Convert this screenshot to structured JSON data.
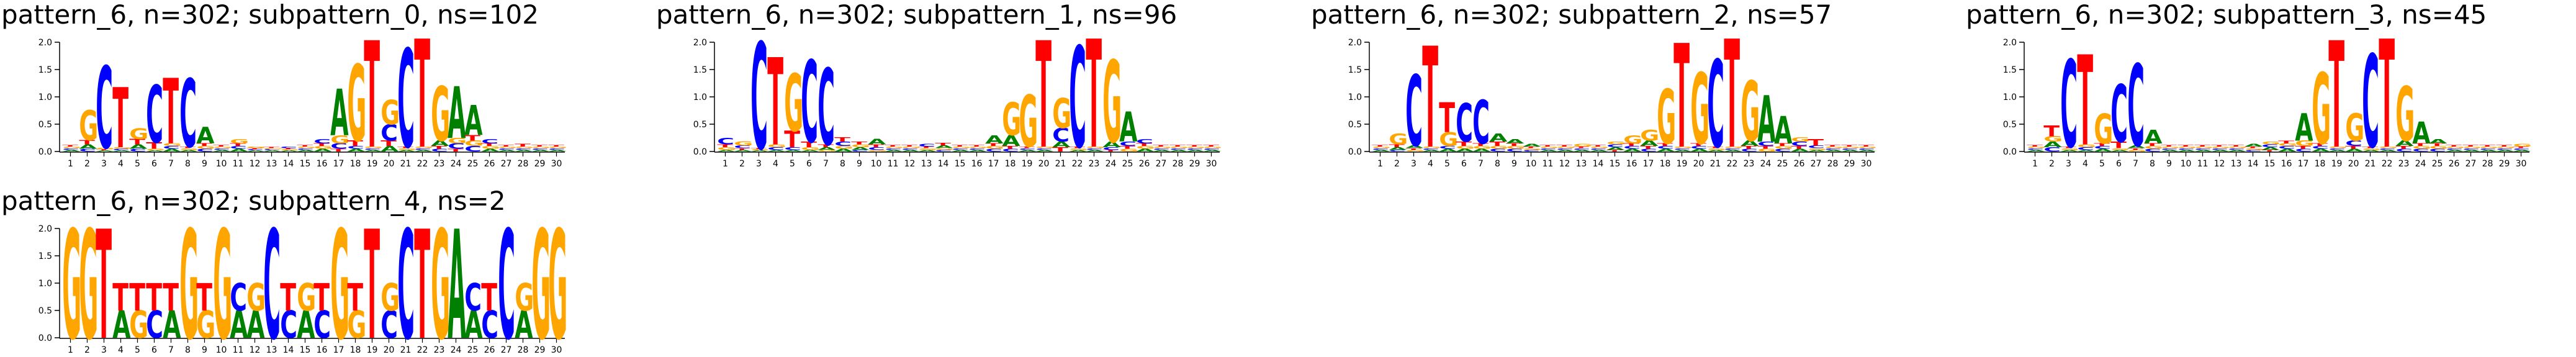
{
  "colors": {
    "A": "#008000",
    "C": "#0000ff",
    "G": "#ffa500",
    "T": "#ff0000"
  },
  "chart_data": [
    {
      "type": "sequence-logo",
      "title": "pattern_6, n=302; subpattern_0, ns=102",
      "ylim": [
        0,
        2.0
      ],
      "yticks": [
        "0.0",
        "0.5",
        "1.0",
        "1.5",
        "2.0"
      ],
      "positions": [
        "1",
        "2",
        "3",
        "4",
        "5",
        "6",
        "7",
        "8",
        "9",
        "10",
        "11",
        "12",
        "13",
        "14",
        "15",
        "16",
        "17",
        "18",
        "19",
        "20",
        "21",
        "22",
        "23",
        "24",
        "25",
        "26",
        "27",
        "28",
        "29",
        "30"
      ],
      "letters": [
        {
          "A": 0.03,
          "C": 0.03,
          "G": 0.03,
          "T": 0.03
        },
        {
          "A": 0.08,
          "C": 0.05,
          "G": 0.55,
          "T": 0.08
        },
        {
          "A": 0.02,
          "C": 1.5,
          "G": 0.03,
          "T": 0.02
        },
        {
          "A": 0.02,
          "C": 0.03,
          "G": 0.03,
          "T": 1.1
        },
        {
          "A": 0.08,
          "C": 0.05,
          "G": 0.2,
          "T": 0.1
        },
        {
          "A": 0.02,
          "C": 1.05,
          "G": 0.03,
          "T": 0.12
        },
        {
          "A": 0.05,
          "C": 0.05,
          "G": 0.05,
          "T": 1.2
        },
        {
          "A": 0.03,
          "C": 1.25,
          "G": 0.03,
          "T": 0.03
        },
        {
          "A": 0.3,
          "C": 0.05,
          "G": 0.05,
          "T": 0.05
        },
        {
          "A": 0.03,
          "C": 0.03,
          "G": 0.03,
          "T": 0.03
        },
        {
          "A": 0.05,
          "C": 0.05,
          "G": 0.08,
          "T": 0.05
        },
        {
          "A": 0.02,
          "C": 0.02,
          "G": 0.03,
          "T": 0.02
        },
        {
          "A": 0.02,
          "C": 0.02,
          "G": 0.02,
          "T": 0.02
        },
        {
          "A": 0.02,
          "C": 0.03,
          "G": 0.02,
          "T": 0.02
        },
        {
          "A": 0.03,
          "C": 0.03,
          "G": 0.03,
          "T": 0.03
        },
        {
          "A": 0.05,
          "C": 0.08,
          "G": 0.05,
          "T": 0.05
        },
        {
          "A": 0.85,
          "C": 0.1,
          "G": 0.15,
          "T": 0.05
        },
        {
          "A": 0.05,
          "C": 0.05,
          "G": 1.4,
          "T": 0.1
        },
        {
          "A": 0.03,
          "C": 0.03,
          "G": 0.03,
          "T": 1.95
        },
        {
          "A": 0.1,
          "C": 0.3,
          "G": 0.45,
          "T": 0.1
        },
        {
          "A": 0.03,
          "C": 1.8,
          "G": 0.03,
          "T": 0.03
        },
        {
          "A": 0.03,
          "C": 0.03,
          "G": 0.03,
          "T": 1.98
        },
        {
          "A": 0.1,
          "C": 0.05,
          "G": 1.0,
          "T": 0.05
        },
        {
          "A": 0.95,
          "C": 0.1,
          "G": 0.1,
          "T": 0.05
        },
        {
          "A": 0.55,
          "C": 0.1,
          "G": 0.1,
          "T": 0.1
        },
        {
          "A": 0.05,
          "C": 0.08,
          "G": 0.05,
          "T": 0.05
        },
        {
          "A": 0.03,
          "C": 0.03,
          "G": 0.03,
          "T": 0.03
        },
        {
          "A": 0.03,
          "C": 0.03,
          "G": 0.03,
          "T": 0.05
        },
        {
          "A": 0.03,
          "C": 0.03,
          "G": 0.03,
          "T": 0.03
        },
        {
          "A": 0.03,
          "C": 0.03,
          "G": 0.03,
          "T": 0.03
        }
      ]
    },
    {
      "type": "sequence-logo",
      "title": "pattern_6, n=302; subpattern_1, ns=96",
      "ylim": [
        0,
        2.0
      ],
      "yticks": [
        "0.0",
        "0.5",
        "1.0",
        "1.5",
        "2.0"
      ],
      "positions": [
        "1",
        "2",
        "3",
        "4",
        "5",
        "6",
        "7",
        "8",
        "9",
        "10",
        "11",
        "12",
        "13",
        "14",
        "15",
        "16",
        "17",
        "18",
        "19",
        "20",
        "21",
        "22",
        "23",
        "24",
        "25",
        "26",
        "27",
        "28",
        "29",
        "30"
      ],
      "letters": [
        {
          "A": 0.03,
          "C": 0.12,
          "G": 0.05,
          "T": 0.05
        },
        {
          "A": 0.03,
          "C": 0.05,
          "G": 0.08,
          "T": 0.03
        },
        {
          "A": 0.02,
          "C": 1.95,
          "G": 0.02,
          "T": 0.02
        },
        {
          "A": 0.03,
          "C": 0.05,
          "G": 0.05,
          "T": 1.6
        },
        {
          "A": 0.03,
          "C": 0.05,
          "G": 1.05,
          "T": 0.3
        },
        {
          "A": 0.03,
          "C": 1.5,
          "G": 0.05,
          "T": 0.1
        },
        {
          "A": 0.05,
          "C": 1.4,
          "G": 0.03,
          "T": 0.05
        },
        {
          "A": 0.05,
          "C": 0.08,
          "G": 0.05,
          "T": 0.08
        },
        {
          "A": 0.05,
          "C": 0.03,
          "G": 0.05,
          "T": 0.05
        },
        {
          "A": 0.1,
          "C": 0.05,
          "G": 0.03,
          "T": 0.05
        },
        {
          "A": 0.03,
          "C": 0.03,
          "G": 0.03,
          "T": 0.03
        },
        {
          "A": 0.03,
          "C": 0.03,
          "G": 0.03,
          "T": 0.03
        },
        {
          "A": 0.03,
          "C": 0.05,
          "G": 0.03,
          "T": 0.03
        },
        {
          "A": 0.05,
          "C": 0.03,
          "G": 0.03,
          "T": 0.05
        },
        {
          "A": 0.03,
          "C": 0.03,
          "G": 0.03,
          "T": 0.03
        },
        {
          "A": 0.03,
          "C": 0.03,
          "G": 0.03,
          "T": 0.03
        },
        {
          "A": 0.15,
          "C": 0.05,
          "G": 0.05,
          "T": 0.05
        },
        {
          "A": 0.2,
          "C": 0.05,
          "G": 0.6,
          "T": 0.05
        },
        {
          "A": 0.03,
          "C": 0.03,
          "G": 0.95,
          "T": 0.03
        },
        {
          "A": 0.03,
          "C": 0.03,
          "G": 0.03,
          "T": 1.95
        },
        {
          "A": 0.1,
          "C": 0.25,
          "G": 0.55,
          "T": 0.08
        },
        {
          "A": 0.03,
          "C": 1.85,
          "G": 0.03,
          "T": 0.03
        },
        {
          "A": 0.03,
          "C": 0.03,
          "G": 0.03,
          "T": 1.98
        },
        {
          "A": 0.1,
          "C": 0.05,
          "G": 1.5,
          "T": 0.03
        },
        {
          "A": 0.55,
          "C": 0.08,
          "G": 0.05,
          "T": 0.05
        },
        {
          "A": 0.05,
          "C": 0.08,
          "G": 0.05,
          "T": 0.05
        },
        {
          "A": 0.03,
          "C": 0.03,
          "G": 0.03,
          "T": 0.03
        },
        {
          "A": 0.03,
          "C": 0.03,
          "G": 0.03,
          "T": 0.03
        },
        {
          "A": 0.03,
          "C": 0.03,
          "G": 0.03,
          "T": 0.03
        },
        {
          "A": 0.03,
          "C": 0.03,
          "G": 0.03,
          "T": 0.03
        }
      ]
    },
    {
      "type": "sequence-logo",
      "title": "pattern_6, n=302; subpattern_2, ns=57",
      "ylim": [
        0,
        2.0
      ],
      "yticks": [
        "0.0",
        "0.5",
        "1.0",
        "1.5",
        "2.0"
      ],
      "positions": [
        "1",
        "2",
        "3",
        "4",
        "5",
        "6",
        "7",
        "8",
        "9",
        "10",
        "11",
        "12",
        "13",
        "14",
        "15",
        "16",
        "17",
        "18",
        "19",
        "20",
        "21",
        "22",
        "23",
        "24",
        "25",
        "26",
        "27",
        "28",
        "29",
        "30"
      ],
      "letters": [
        {
          "A": 0.03,
          "C": 0.03,
          "G": 0.03,
          "T": 0.03
        },
        {
          "A": 0.05,
          "C": 0.03,
          "G": 0.2,
          "T": 0.05
        },
        {
          "A": 0.05,
          "C": 1.3,
          "G": 0.03,
          "T": 0.03
        },
        {
          "A": 0.03,
          "C": 0.03,
          "G": 0.03,
          "T": 1.85
        },
        {
          "A": 0.05,
          "C": 0.05,
          "G": 0.25,
          "T": 0.55
        },
        {
          "A": 0.05,
          "C": 0.7,
          "G": 0.05,
          "T": 0.08
        },
        {
          "A": 0.05,
          "C": 0.8,
          "G": 0.05,
          "T": 0.05
        },
        {
          "A": 0.15,
          "C": 0.05,
          "G": 0.05,
          "T": 0.08
        },
        {
          "A": 0.08,
          "C": 0.05,
          "G": 0.05,
          "T": 0.05
        },
        {
          "A": 0.05,
          "C": 0.03,
          "G": 0.03,
          "T": 0.03
        },
        {
          "A": 0.03,
          "C": 0.03,
          "G": 0.03,
          "T": 0.03
        },
        {
          "A": 0.03,
          "C": 0.03,
          "G": 0.03,
          "T": 0.03
        },
        {
          "A": 0.03,
          "C": 0.03,
          "G": 0.05,
          "T": 0.03
        },
        {
          "A": 0.03,
          "C": 0.03,
          "G": 0.03,
          "T": 0.03
        },
        {
          "A": 0.05,
          "C": 0.05,
          "G": 0.05,
          "T": 0.03
        },
        {
          "A": 0.05,
          "C": 0.05,
          "G": 0.15,
          "T": 0.05
        },
        {
          "A": 0.1,
          "C": 0.05,
          "G": 0.2,
          "T": 0.05
        },
        {
          "A": 0.05,
          "C": 0.05,
          "G": 1.0,
          "T": 0.05
        },
        {
          "A": 0.03,
          "C": 0.03,
          "G": 0.03,
          "T": 1.9
        },
        {
          "A": 0.05,
          "C": 0.05,
          "G": 1.3,
          "T": 0.05
        },
        {
          "A": 0.03,
          "C": 1.6,
          "G": 0.03,
          "T": 0.03
        },
        {
          "A": 0.03,
          "C": 0.03,
          "G": 0.03,
          "T": 1.98
        },
        {
          "A": 0.1,
          "C": 0.05,
          "G": 1.1,
          "T": 0.05
        },
        {
          "A": 0.85,
          "C": 0.08,
          "G": 0.05,
          "T": 0.05
        },
        {
          "A": 0.5,
          "C": 0.05,
          "G": 0.05,
          "T": 0.05
        },
        {
          "A": 0.05,
          "C": 0.08,
          "G": 0.08,
          "T": 0.05
        },
        {
          "A": 0.03,
          "C": 0.05,
          "G": 0.03,
          "T": 0.12
        },
        {
          "A": 0.03,
          "C": 0.03,
          "G": 0.03,
          "T": 0.03
        },
        {
          "A": 0.03,
          "C": 0.03,
          "G": 0.03,
          "T": 0.03
        },
        {
          "A": 0.03,
          "C": 0.03,
          "G": 0.03,
          "T": 0.03
        }
      ]
    },
    {
      "type": "sequence-logo",
      "title": "pattern_6, n=302; subpattern_3, ns=45",
      "ylim": [
        0,
        2.0
      ],
      "yticks": [
        "0.0",
        "0.5",
        "1.0",
        "1.5",
        "2.0"
      ],
      "positions": [
        "1",
        "2",
        "3",
        "4",
        "5",
        "6",
        "7",
        "8",
        "9",
        "10",
        "11",
        "12",
        "13",
        "14",
        "15",
        "16",
        "17",
        "18",
        "19",
        "20",
        "21",
        "22",
        "23",
        "24",
        "25",
        "26",
        "27",
        "28",
        "29",
        "30"
      ],
      "letters": [
        {
          "A": 0.03,
          "C": 0.03,
          "G": 0.03,
          "T": 0.03
        },
        {
          "A": 0.1,
          "C": 0.08,
          "G": 0.1,
          "T": 0.2
        },
        {
          "A": 0.03,
          "C": 1.6,
          "G": 0.03,
          "T": 0.03
        },
        {
          "A": 0.03,
          "C": 0.05,
          "G": 0.05,
          "T": 1.65
        },
        {
          "A": 0.05,
          "C": 0.05,
          "G": 0.55,
          "T": 0.05
        },
        {
          "A": 0.03,
          "C": 1.05,
          "G": 0.03,
          "T": 0.12
        },
        {
          "A": 0.05,
          "C": 1.5,
          "G": 0.03,
          "T": 0.03
        },
        {
          "A": 0.25,
          "C": 0.05,
          "G": 0.05,
          "T": 0.05
        },
        {
          "A": 0.03,
          "C": 0.03,
          "G": 0.03,
          "T": 0.03
        },
        {
          "A": 0.03,
          "C": 0.03,
          "G": 0.03,
          "T": 0.03
        },
        {
          "A": 0.03,
          "C": 0.03,
          "G": 0.03,
          "T": 0.03
        },
        {
          "A": 0.03,
          "C": 0.03,
          "G": 0.03,
          "T": 0.03
        },
        {
          "A": 0.03,
          "C": 0.03,
          "G": 0.03,
          "T": 0.03
        },
        {
          "A": 0.05,
          "C": 0.03,
          "G": 0.03,
          "T": 0.03
        },
        {
          "A": 0.05,
          "C": 0.05,
          "G": 0.05,
          "T": 0.03
        },
        {
          "A": 0.05,
          "C": 0.05,
          "G": 0.05,
          "T": 0.05
        },
        {
          "A": 0.5,
          "C": 0.05,
          "G": 0.1,
          "T": 0.05
        },
        {
          "A": 0.05,
          "C": 0.05,
          "G": 1.3,
          "T": 0.05
        },
        {
          "A": 0.03,
          "C": 0.03,
          "G": 0.03,
          "T": 1.95
        },
        {
          "A": 0.05,
          "C": 0.1,
          "G": 0.5,
          "T": 0.05
        },
        {
          "A": 0.03,
          "C": 1.7,
          "G": 0.03,
          "T": 0.03
        },
        {
          "A": 0.03,
          "C": 0.03,
          "G": 0.03,
          "T": 1.98
        },
        {
          "A": 0.1,
          "C": 0.05,
          "G": 1.0,
          "T": 0.05
        },
        {
          "A": 0.4,
          "C": 0.05,
          "G": 0.05,
          "T": 0.05
        },
        {
          "A": 0.08,
          "C": 0.05,
          "G": 0.05,
          "T": 0.05
        },
        {
          "A": 0.03,
          "C": 0.03,
          "G": 0.03,
          "T": 0.03
        },
        {
          "A": 0.03,
          "C": 0.03,
          "G": 0.03,
          "T": 0.03
        },
        {
          "A": 0.03,
          "C": 0.03,
          "G": 0.03,
          "T": 0.03
        },
        {
          "A": 0.03,
          "C": 0.03,
          "G": 0.03,
          "T": 0.03
        },
        {
          "A": 0.03,
          "C": 0.03,
          "G": 0.05,
          "T": 0.03
        }
      ]
    },
    {
      "type": "sequence-logo",
      "title": "pattern_6, n=302; subpattern_4, ns=2",
      "ylim": [
        0,
        2.0
      ],
      "yticks": [
        "0.0",
        "0.5",
        "1.0",
        "1.5",
        "2.0"
      ],
      "positions": [
        "1",
        "2",
        "3",
        "4",
        "5",
        "6",
        "7",
        "8",
        "9",
        "10",
        "11",
        "12",
        "13",
        "14",
        "15",
        "16",
        "17",
        "18",
        "19",
        "20",
        "21",
        "22",
        "23",
        "24",
        "25",
        "26",
        "27",
        "28",
        "29",
        "30"
      ],
      "letters": [
        {
          "A": 0,
          "C": 0,
          "G": 2.0,
          "T": 0
        },
        {
          "A": 0,
          "C": 0,
          "G": 2.0,
          "T": 0
        },
        {
          "A": 0,
          "C": 0,
          "G": 0,
          "T": 2.0
        },
        {
          "A": 0.5,
          "C": 0,
          "G": 0,
          "T": 0.5
        },
        {
          "A": 0,
          "C": 0,
          "G": 0.5,
          "T": 0.5
        },
        {
          "A": 0,
          "C": 0.5,
          "G": 0,
          "T": 0.5
        },
        {
          "A": 0.5,
          "C": 0,
          "G": 0,
          "T": 0.5
        },
        {
          "A": 0,
          "C": 0,
          "G": 2.0,
          "T": 0
        },
        {
          "A": 0,
          "C": 0,
          "G": 0.5,
          "T": 0.5
        },
        {
          "A": 0,
          "C": 0,
          "G": 2.0,
          "T": 0
        },
        {
          "A": 0.5,
          "C": 0.5,
          "G": 0,
          "T": 0
        },
        {
          "A": 0.5,
          "C": 0,
          "G": 0.5,
          "T": 0
        },
        {
          "A": 0,
          "C": 2.0,
          "G": 0,
          "T": 0
        },
        {
          "A": 0,
          "C": 0.5,
          "G": 0,
          "T": 0.5
        },
        {
          "A": 0.5,
          "C": 0,
          "G": 0.5,
          "T": 0
        },
        {
          "A": 0,
          "C": 0.5,
          "G": 0,
          "T": 0.5
        },
        {
          "A": 0,
          "C": 0,
          "G": 2.0,
          "T": 0
        },
        {
          "A": 0,
          "C": 0,
          "G": 0.5,
          "T": 0.5
        },
        {
          "A": 0,
          "C": 0,
          "G": 0,
          "T": 2.0
        },
        {
          "A": 0,
          "C": 0.5,
          "G": 0.5,
          "T": 0
        },
        {
          "A": 0,
          "C": 2.0,
          "G": 0,
          "T": 0
        },
        {
          "A": 0,
          "C": 0,
          "G": 0,
          "T": 2.0
        },
        {
          "A": 0,
          "C": 0,
          "G": 2.0,
          "T": 0
        },
        {
          "A": 2.0,
          "C": 0,
          "G": 0,
          "T": 0
        },
        {
          "A": 0.5,
          "C": 0.5,
          "G": 0,
          "T": 0
        },
        {
          "A": 0,
          "C": 0.5,
          "G": 0,
          "T": 0.5
        },
        {
          "A": 0,
          "C": 2.0,
          "G": 0,
          "T": 0
        },
        {
          "A": 0.5,
          "C": 0,
          "G": 0.5,
          "T": 0
        },
        {
          "A": 0,
          "C": 0,
          "G": 2.0,
          "T": 0
        },
        {
          "A": 0,
          "C": 0,
          "G": 2.0,
          "T": 0
        }
      ]
    }
  ]
}
